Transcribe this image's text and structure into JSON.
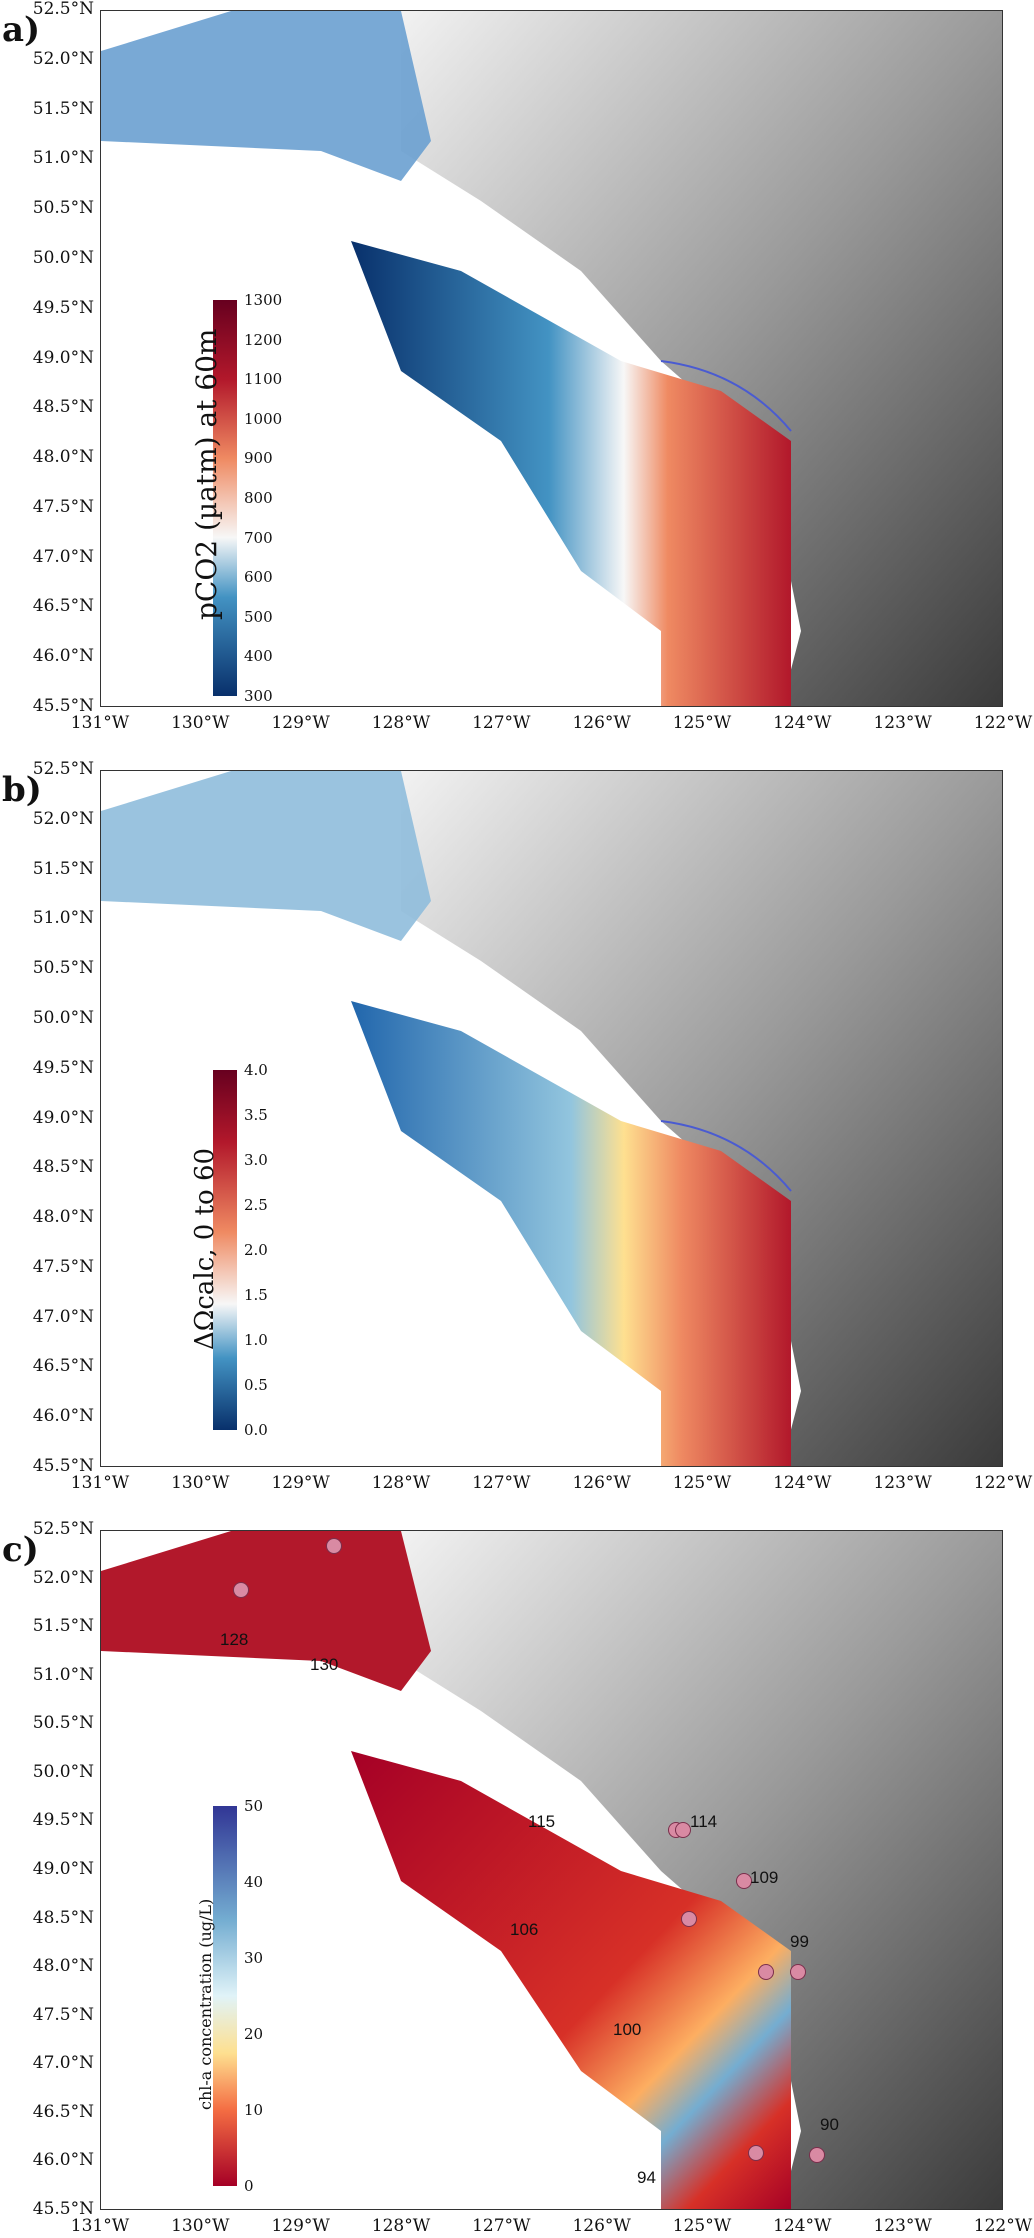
{
  "lat_labels": [
    "52.5°N",
    "52.0°N",
    "51.5°N",
    "51.0°N",
    "50.5°N",
    "50.0°N",
    "49.5°N",
    "49.0°N",
    "48.5°N",
    "48.0°N",
    "47.5°N",
    "47.0°N",
    "46.5°N",
    "46.0°N",
    "45.5°N"
  ],
  "lon_labels": [
    "131°W",
    "130°W",
    "129°W",
    "128°W",
    "127°W",
    "126°W",
    "125°W",
    "124°W",
    "123°W",
    "122°W"
  ],
  "panels": [
    {
      "letter": "a)",
      "colorbar_title": "pCO2 (µatm) at 60m",
      "colorbar_ticks": [
        "1300",
        "1200",
        "1100",
        "1000",
        "900",
        "800",
        "700",
        "600",
        "500",
        "400",
        "300"
      ],
      "colors": [
        "#08306b",
        "#2166ac",
        "#92c5de",
        "#f7f7f7",
        "#fddbc7",
        "#ef8a62",
        "#b2182b",
        "#67001f"
      ]
    },
    {
      "letter": "b)",
      "colorbar_title": "ΔΩcalc, 0 to 60",
      "colorbar_ticks": [
        "4.0",
        "3.5",
        "3.0",
        "2.5",
        "2.0",
        "1.5",
        "1.0",
        "0.5",
        "0.0"
      ],
      "colors": [
        "#08306b",
        "#2166ac",
        "#92c5de",
        "#f7f7f7",
        "#fddbc7",
        "#ef8a62",
        "#b2182b",
        "#67001f"
      ]
    },
    {
      "letter": "c)",
      "colorbar_title": "chl-a concentration (ug/L)",
      "colorbar_ticks": [
        "50",
        "40",
        "30",
        "20",
        "10",
        "0"
      ],
      "colors": [
        "#a50026",
        "#d73027",
        "#f46d43",
        "#fdae61",
        "#fee090",
        "#e0f3f8",
        "#74add1",
        "#2c5aa0"
      ],
      "stations": [
        "128",
        "130",
        "115",
        "114",
        "109",
        "106",
        "99",
        "100",
        "94",
        "90"
      ]
    }
  ]
}
